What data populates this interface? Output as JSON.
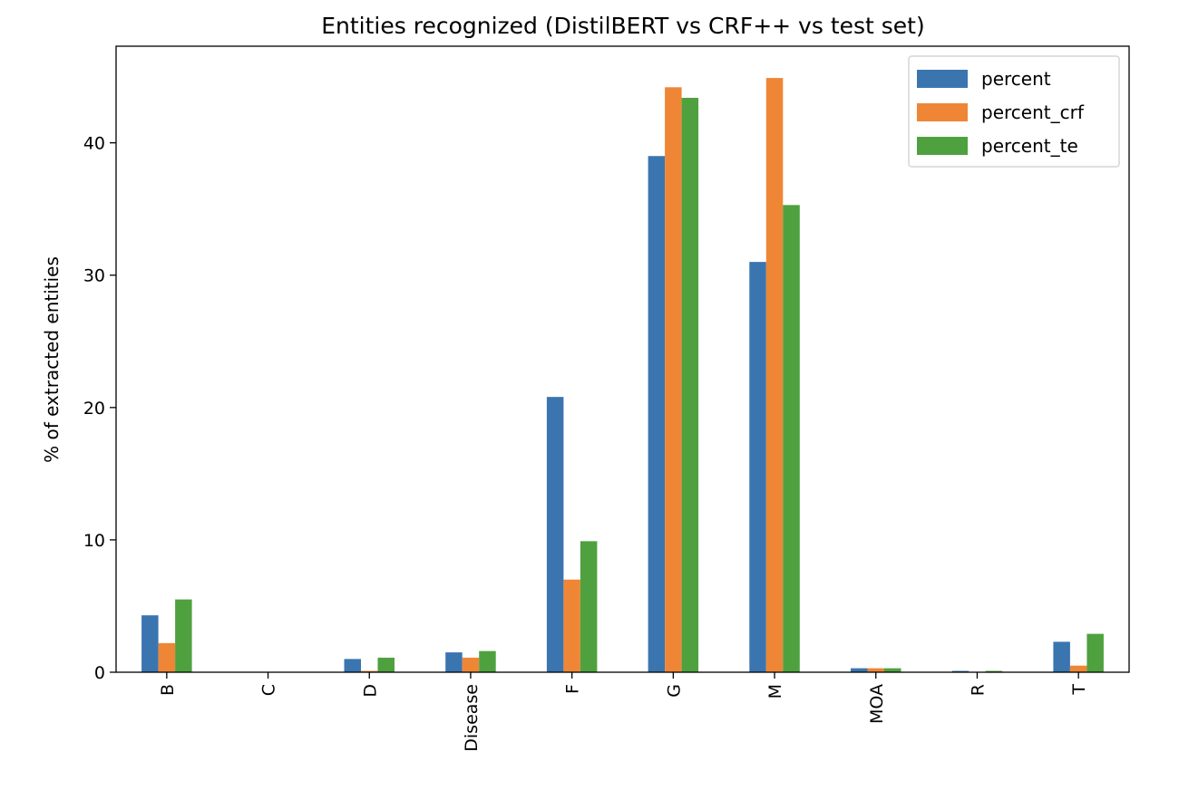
{
  "chart_data": {
    "type": "bar",
    "title": "Entities recognized (DistilBERT vs CRF++ vs test set)",
    "xlabel": "",
    "ylabel": "% of extracted entities",
    "categories": [
      "B",
      "C",
      "D",
      "Disease",
      "F",
      "G",
      "M",
      "MOA",
      "R",
      "T"
    ],
    "series": [
      {
        "name": "percent",
        "color": "#3a75b0",
        "values": [
          4.3,
          0.0,
          1.0,
          1.5,
          20.8,
          39.0,
          31.0,
          0.3,
          0.1,
          2.3
        ]
      },
      {
        "name": "percent_crf",
        "color": "#ef8636",
        "values": [
          2.2,
          0.0,
          0.1,
          1.1,
          7.0,
          44.2,
          44.9,
          0.3,
          0.0,
          0.5
        ]
      },
      {
        "name": "percent_te",
        "color": "#4fa13f",
        "values": [
          5.5,
          0.0,
          1.1,
          1.6,
          9.9,
          43.4,
          35.3,
          0.3,
          0.1,
          2.9
        ]
      }
    ],
    "ylim": [
      0,
      47.3
    ],
    "yticks": [
      0,
      10,
      20,
      30,
      40
    ],
    "grid": false,
    "legend_position": "top-right"
  }
}
